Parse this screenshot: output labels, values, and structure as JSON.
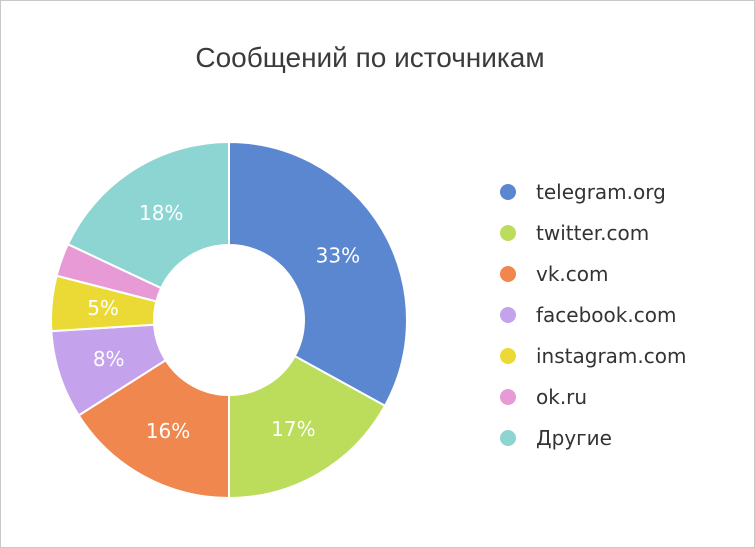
{
  "chart_data": {
    "type": "pie",
    "title": "Сообщений по источникам",
    "donut": true,
    "categories": [
      "telegram.org",
      "twitter.com",
      "vk.com",
      "facebook.com",
      "instagram.com",
      "ok.ru",
      "Другие"
    ],
    "values": [
      33,
      17,
      16,
      8,
      5,
      3,
      18
    ],
    "labels": [
      "33%",
      "17%",
      "16%",
      "8%",
      "5%",
      "",
      "18%"
    ],
    "colors": [
      "#5b87d0",
      "#bcdc5c",
      "#f0874f",
      "#c5a3ec",
      "#ebd935",
      "#e89ad6",
      "#8dd5d3"
    ],
    "legend_position": "right"
  }
}
